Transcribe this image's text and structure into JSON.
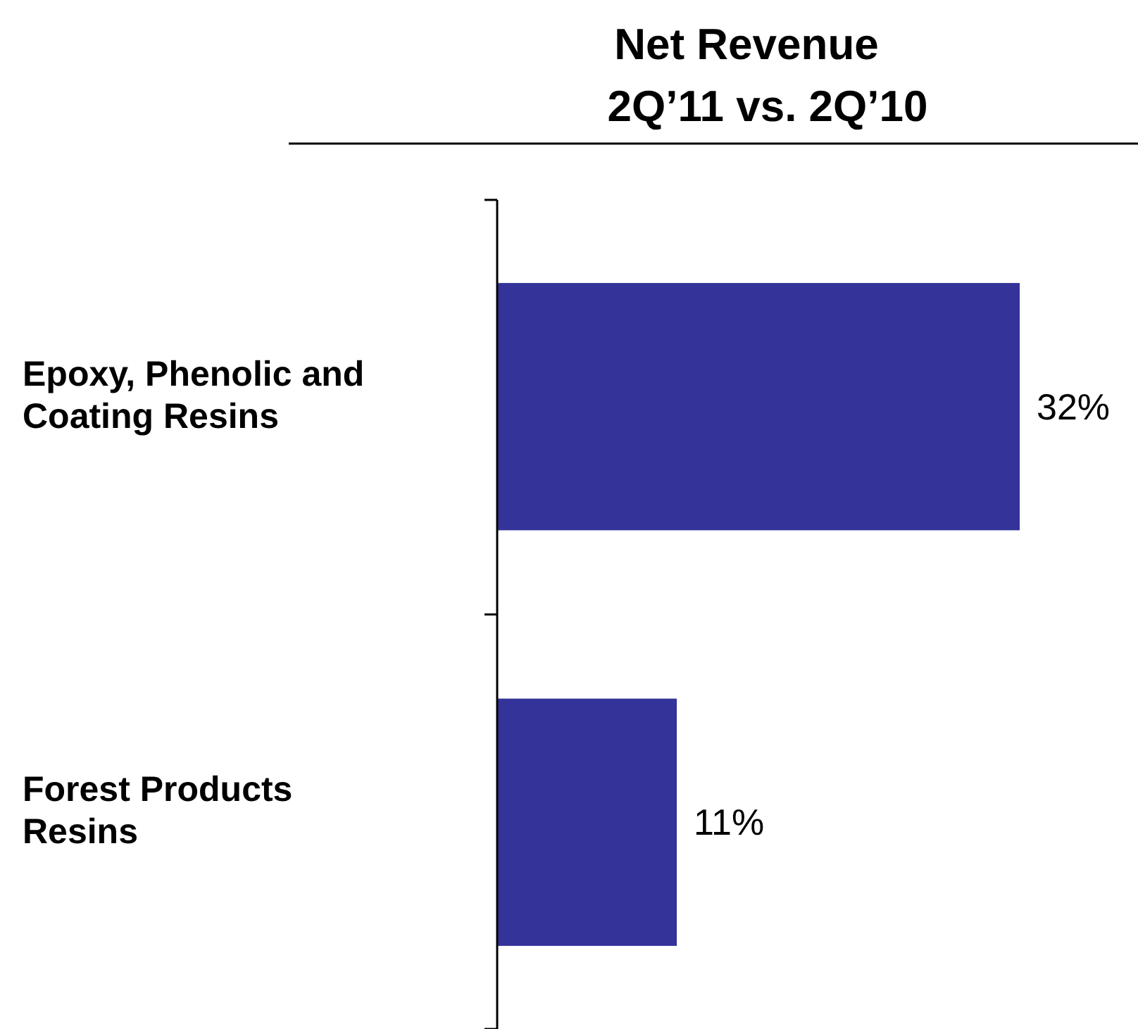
{
  "chart_data": {
    "type": "bar",
    "orientation": "horizontal",
    "title": "Net Revenue",
    "subtitle": "2Q’11 vs. 2Q’10",
    "categories": [
      "Epoxy, Phenolic and Coating Resins",
      "Forest Products Resins"
    ],
    "values": [
      32,
      11
    ],
    "value_labels": [
      "32%",
      "11%"
    ],
    "color": "#333399"
  }
}
